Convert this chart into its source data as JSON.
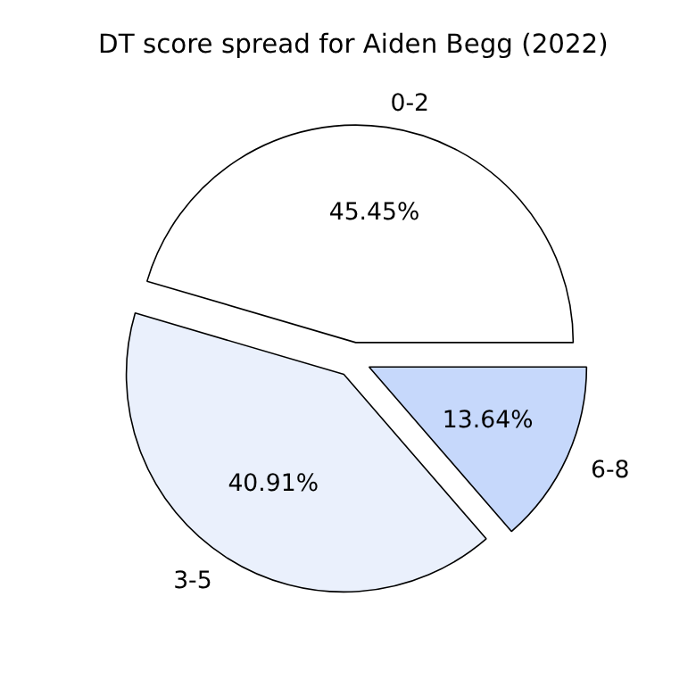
{
  "chart_data": {
    "type": "pie",
    "title": "DT score spread for Aiden Begg (2022)",
    "categories": [
      "0-2",
      "3-5",
      "6-8"
    ],
    "values": [
      45.45,
      40.91,
      13.64
    ],
    "colors": [
      "#ffffff",
      "#eaf0fc",
      "#c6d8fb"
    ],
    "value_labels": [
      "45.45%",
      "40.91%",
      "13.64%"
    ]
  }
}
